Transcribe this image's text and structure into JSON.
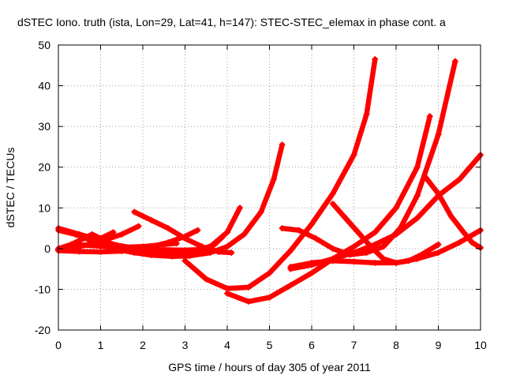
{
  "chart_data": {
    "type": "scatter",
    "title": "dSTEC Iono. truth (ista, Lon=29, Lat=41, h=147): STEC-STEC_elemax in phase cont. a",
    "xlabel": "GPS time / hours of day 305 of year 2011",
    "ylabel": "dSTEC  / TECUs",
    "xlim": [
      0,
      10
    ],
    "ylim": [
      -20,
      50
    ],
    "x_ticks": [
      0,
      1,
      2,
      3,
      4,
      5,
      6,
      7,
      8,
      9,
      10
    ],
    "y_ticks": [
      -20,
      -10,
      0,
      10,
      20,
      30,
      40,
      50
    ],
    "grid": true,
    "marker": "+",
    "color": "#ff0000",
    "series": [
      {
        "x": [
          0.0,
          0.5,
          1.0,
          1.4,
          1.9,
          2.3,
          2.8,
          3.2,
          3.6,
          4.0,
          4.3
        ],
        "y": [
          5.0,
          3.5,
          2.0,
          0.8,
          0.0,
          -0.8,
          -1.3,
          -1.0,
          0.5,
          4.0,
          10.0
        ]
      },
      {
        "x": [
          0.0,
          0.4,
          0.9,
          1.3,
          1.8,
          2.2,
          2.7,
          3.1,
          3.6,
          4.0,
          4.4,
          4.8,
          5.1,
          5.3
        ],
        "y": [
          4.5,
          3.5,
          1.5,
          0.0,
          -1.0,
          -1.6,
          -1.9,
          -1.8,
          -1.0,
          0.5,
          3.5,
          9.0,
          17.0,
          25.5
        ]
      },
      {
        "x": [
          0.0,
          0.3,
          0.6,
          0.8,
          1.0,
          1.3
        ],
        "y": [
          0.0,
          1.0,
          2.5,
          3.5,
          2.5,
          4.0
        ]
      },
      {
        "x": [
          0.0,
          0.5,
          1.0,
          1.5,
          1.9
        ],
        "y": [
          -0.3,
          0.5,
          1.8,
          3.5,
          5.5
        ]
      },
      {
        "x": [
          0.0,
          0.5,
          1.0,
          1.5,
          1.8,
          2.2,
          2.6,
          3.0,
          3.3
        ],
        "y": [
          -0.5,
          -0.7,
          -0.8,
          -0.6,
          -0.2,
          0.5,
          1.5,
          3.0,
          4.5
        ]
      },
      {
        "x": [
          0.4,
          1.0,
          1.5,
          2.0,
          2.5,
          2.8
        ],
        "y": [
          1.0,
          0.6,
          0.3,
          0.5,
          1.0,
          1.3
        ]
      },
      {
        "x": [
          1.8,
          2.2,
          2.6,
          3.0,
          3.4,
          3.8,
          4.1
        ],
        "y": [
          9.0,
          7.0,
          5.0,
          2.5,
          0.5,
          -0.8,
          -1.0
        ]
      },
      {
        "x": [
          2.0,
          2.5,
          3.0,
          3.4,
          3.7,
          3.9
        ],
        "y": [
          -0.5,
          -0.3,
          -0.4,
          -0.2,
          1.0,
          3.0
        ]
      },
      {
        "x": [
          3.0,
          3.5,
          4.0,
          4.5,
          5.0,
          5.5,
          6.0,
          6.5,
          7.0,
          7.3,
          7.5
        ],
        "y": [
          -3.0,
          -7.5,
          -9.8,
          -9.5,
          -6.0,
          -0.5,
          6.0,
          13.5,
          23.0,
          33.0,
          46.5
        ]
      },
      {
        "x": [
          4.0,
          4.5,
          5.0,
          5.5,
          6.0,
          6.5,
          7.0,
          7.5,
          8.0,
          8.5,
          8.8
        ],
        "y": [
          -11.0,
          -13.0,
          -12.0,
          -9.0,
          -6.0,
          -2.5,
          0.5,
          4.0,
          10.0,
          20.0,
          32.5
        ]
      },
      {
        "x": [
          5.3,
          5.7,
          6.1,
          6.5,
          6.9,
          7.3,
          7.7,
          8.1,
          8.5,
          9.0,
          9.4
        ],
        "y": [
          5.0,
          4.5,
          2.5,
          0.0,
          -1.5,
          -1.0,
          0.5,
          5.0,
          13.0,
          28.0,
          46.0
        ]
      },
      {
        "x": [
          5.5,
          6.0,
          6.5,
          7.0,
          7.5,
          8.0,
          8.5,
          9.0,
          9.5,
          10.0
        ],
        "y": [
          -5.0,
          -4.0,
          -2.5,
          -1.0,
          1.0,
          3.5,
          7.5,
          13.0,
          17.0,
          23.0
        ]
      },
      {
        "x": [
          6.5,
          6.8,
          7.1,
          7.4,
          7.7,
          8.0,
          8.3,
          8.6,
          9.0
        ],
        "y": [
          11.0,
          7.5,
          4.0,
          0.5,
          -2.5,
          -3.5,
          -3.0,
          -1.5,
          1.0
        ]
      },
      {
        "x": [
          5.5,
          6.0,
          6.5,
          7.0,
          7.5,
          8.0,
          8.5,
          9.0,
          9.5,
          10.0
        ],
        "y": [
          -4.5,
          -3.5,
          -3.0,
          -3.2,
          -3.5,
          -3.5,
          -2.5,
          -1.0,
          1.5,
          4.5
        ]
      },
      {
        "x": [
          8.7,
          9.0,
          9.3,
          9.6,
          9.8,
          10.0
        ],
        "y": [
          17.5,
          13.5,
          8.0,
          4.0,
          1.5,
          0.2
        ]
      }
    ]
  }
}
